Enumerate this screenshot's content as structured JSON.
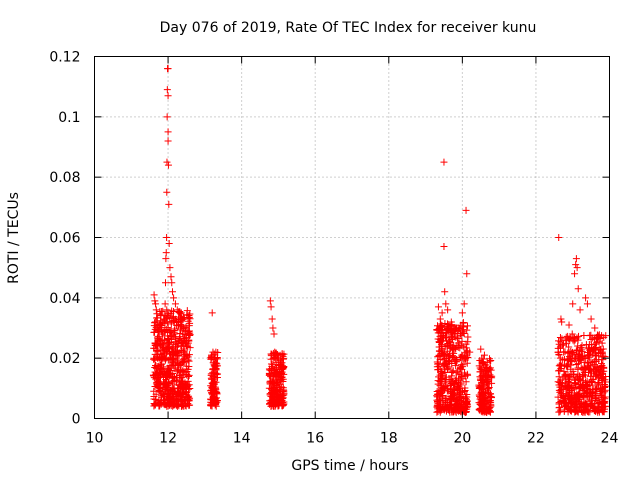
{
  "chart_data": {
    "type": "scatter",
    "title": "Day 076 of 2019, Rate Of TEC Index for receiver kunu",
    "xlabel": "GPS time / hours",
    "ylabel": "ROTI / TECUs",
    "xlim": [
      10,
      24
    ],
    "ylim": [
      0,
      0.12
    ],
    "xticks": [
      10,
      12,
      14,
      16,
      18,
      20,
      22,
      24
    ],
    "yticks": [
      0,
      0.02,
      0.04,
      0.06,
      0.08,
      0.1,
      0.12
    ],
    "xtick_labels": [
      "10",
      "12",
      "14",
      "16",
      "18",
      "20",
      "22",
      "24"
    ],
    "ytick_labels": [
      "0",
      "0.02",
      "0.04",
      "0.06",
      "0.08",
      "0.1",
      "0.12"
    ],
    "grid": true,
    "marker": "+",
    "marker_color": "#ff0000",
    "series": [
      {
        "name": "ROTI",
        "points": [
          [
            11.62,
            0.041
          ],
          [
            11.64,
            0.039
          ],
          [
            11.66,
            0.038
          ],
          [
            11.68,
            0.036
          ],
          [
            11.7,
            0.025
          ],
          [
            11.72,
            0.02
          ],
          [
            11.75,
            0.015
          ],
          [
            11.78,
            0.012
          ],
          [
            11.8,
            0.024
          ],
          [
            11.82,
            0.018
          ],
          [
            11.85,
            0.028
          ],
          [
            11.88,
            0.033
          ],
          [
            11.9,
            0.022
          ],
          [
            11.92,
            0.038
          ],
          [
            11.93,
            0.045
          ],
          [
            11.94,
            0.053
          ],
          [
            11.95,
            0.055
          ],
          [
            11.96,
            0.06
          ],
          [
            11.965,
            0.075
          ],
          [
            11.97,
            0.085
          ],
          [
            11.975,
            0.1
          ],
          [
            11.98,
            0.109
          ],
          [
            11.985,
            0.116
          ],
          [
            12.0,
            0.116
          ],
          [
            12.0,
            0.107
          ],
          [
            12.0,
            0.095
          ],
          [
            12.0,
            0.092
          ],
          [
            12.01,
            0.084
          ],
          [
            12.02,
            0.071
          ],
          [
            12.03,
            0.058
          ],
          [
            12.05,
            0.05
          ],
          [
            12.08,
            0.047
          ],
          [
            12.1,
            0.045
          ],
          [
            12.12,
            0.042
          ],
          [
            12.15,
            0.04
          ],
          [
            12.2,
            0.038
          ],
          [
            12.25,
            0.036
          ],
          [
            12.3,
            0.033
          ],
          [
            12.35,
            0.03
          ],
          [
            12.4,
            0.028
          ],
          [
            12.45,
            0.026
          ],
          [
            12.5,
            0.024
          ],
          [
            12.55,
            0.025
          ],
          [
            12.58,
            0.029
          ],
          [
            13.2,
            0.035
          ],
          [
            13.22,
            0.022
          ],
          [
            13.25,
            0.018
          ],
          [
            13.28,
            0.02
          ],
          [
            13.3,
            0.015
          ],
          [
            14.78,
            0.039
          ],
          [
            14.8,
            0.037
          ],
          [
            14.83,
            0.033
          ],
          [
            14.85,
            0.03
          ],
          [
            14.88,
            0.028
          ],
          [
            14.9,
            0.022
          ],
          [
            15.0,
            0.02
          ],
          [
            15.1,
            0.021
          ],
          [
            19.35,
            0.037
          ],
          [
            19.4,
            0.033
          ],
          [
            19.45,
            0.035
          ],
          [
            19.5,
            0.085
          ],
          [
            19.5,
            0.057
          ],
          [
            19.52,
            0.042
          ],
          [
            19.55,
            0.038
          ],
          [
            19.6,
            0.036
          ],
          [
            19.7,
            0.032
          ],
          [
            19.8,
            0.03
          ],
          [
            19.9,
            0.025
          ],
          [
            20.0,
            0.035
          ],
          [
            20.05,
            0.038
          ],
          [
            20.1,
            0.069
          ],
          [
            20.12,
            0.048
          ],
          [
            20.15,
            0.027
          ],
          [
            20.2,
            0.022
          ],
          [
            20.5,
            0.023
          ],
          [
            20.6,
            0.021
          ],
          [
            20.75,
            0.019
          ],
          [
            22.62,
            0.06
          ],
          [
            22.68,
            0.033
          ],
          [
            22.7,
            0.032
          ],
          [
            22.9,
            0.031
          ],
          [
            23.0,
            0.038
          ],
          [
            23.05,
            0.048
          ],
          [
            23.08,
            0.051
          ],
          [
            23.1,
            0.053
          ],
          [
            23.12,
            0.05
          ],
          [
            23.15,
            0.043
          ],
          [
            23.2,
            0.036
          ],
          [
            23.35,
            0.04
          ],
          [
            23.4,
            0.038
          ],
          [
            23.5,
            0.033
          ],
          [
            23.6,
            0.03
          ],
          [
            23.7,
            0.027
          ],
          [
            23.8,
            0.025
          ]
        ],
        "dense_clusters": [
          {
            "x_range": [
              11.6,
              12.6
            ],
            "y_range": [
              0.004,
              0.036
            ],
            "n": 600
          },
          {
            "x_range": [
              13.15,
              13.35
            ],
            "y_range": [
              0.004,
              0.022
            ],
            "n": 110
          },
          {
            "x_range": [
              14.75,
              15.15
            ],
            "y_range": [
              0.004,
              0.022
            ],
            "n": 220
          },
          {
            "x_range": [
              19.3,
              20.15
            ],
            "y_range": [
              0.002,
              0.032
            ],
            "n": 460
          },
          {
            "x_range": [
              20.45,
              20.8
            ],
            "y_range": [
              0.002,
              0.02
            ],
            "n": 170
          },
          {
            "x_range": [
              22.6,
              23.9
            ],
            "y_range": [
              0.002,
              0.028
            ],
            "n": 560
          }
        ]
      }
    ]
  }
}
